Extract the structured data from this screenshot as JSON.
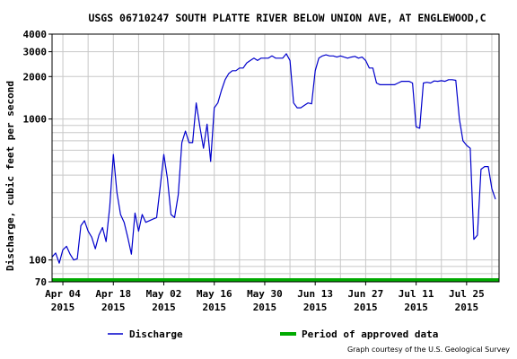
{
  "chart_data": {
    "type": "line",
    "title": "USGS 06710247 SOUTH PLATTE RIVER BELOW UNION AVE, AT ENGLEWOOD,C",
    "ylabel": "Discharge, cubic feet per second",
    "xlabel": "",
    "y_scale": "log",
    "ylim": [
      70,
      4000
    ],
    "xlim": [
      "2015-04-01",
      "2015-08-03"
    ],
    "y_ticks": [
      {
        "value": 70,
        "label": "70"
      },
      {
        "value": 100,
        "label": "100"
      },
      {
        "value": 1000,
        "label": "1000"
      },
      {
        "value": 2000,
        "label": "2000"
      },
      {
        "value": 3000,
        "label": "3000"
      },
      {
        "value": 4000,
        "label": "4000"
      }
    ],
    "x_ticks": [
      {
        "date": "2015-04-04",
        "label": "Apr 04",
        "year": "2015"
      },
      {
        "date": "2015-04-18",
        "label": "Apr 18",
        "year": "2015"
      },
      {
        "date": "2015-05-02",
        "label": "May 02",
        "year": "2015"
      },
      {
        "date": "2015-05-16",
        "label": "May 16",
        "year": "2015"
      },
      {
        "date": "2015-05-30",
        "label": "May 30",
        "year": "2015"
      },
      {
        "date": "2015-06-13",
        "label": "Jun 13",
        "year": "2015"
      },
      {
        "date": "2015-06-27",
        "label": "Jun 27",
        "year": "2015"
      },
      {
        "date": "2015-07-11",
        "label": "Jul 11",
        "year": "2015"
      },
      {
        "date": "2015-07-25",
        "label": "Jul 25",
        "year": "2015"
      }
    ],
    "grid": true,
    "legend_position": "bottom",
    "series": [
      {
        "name": "Discharge",
        "color": "#0000cc",
        "x": [
          "2015-04-01",
          "2015-04-02",
          "2015-04-03",
          "2015-04-04",
          "2015-04-05",
          "2015-04-06",
          "2015-04-07",
          "2015-04-08",
          "2015-04-09",
          "2015-04-10",
          "2015-04-11",
          "2015-04-12",
          "2015-04-13",
          "2015-04-14",
          "2015-04-15",
          "2015-04-16",
          "2015-04-17",
          "2015-04-18",
          "2015-04-19",
          "2015-04-20",
          "2015-04-21",
          "2015-04-22",
          "2015-04-23",
          "2015-04-24",
          "2015-04-25",
          "2015-04-26",
          "2015-04-27",
          "2015-04-28",
          "2015-04-29",
          "2015-04-30",
          "2015-05-01",
          "2015-05-02",
          "2015-05-03",
          "2015-05-04",
          "2015-05-05",
          "2015-05-06",
          "2015-05-07",
          "2015-05-08",
          "2015-05-09",
          "2015-05-10",
          "2015-05-11",
          "2015-05-12",
          "2015-05-13",
          "2015-05-14",
          "2015-05-15",
          "2015-05-16",
          "2015-05-17",
          "2015-05-18",
          "2015-05-19",
          "2015-05-20",
          "2015-05-21",
          "2015-05-22",
          "2015-05-23",
          "2015-05-24",
          "2015-05-25",
          "2015-05-26",
          "2015-05-27",
          "2015-05-28",
          "2015-05-29",
          "2015-05-30",
          "2015-05-31",
          "2015-06-01",
          "2015-06-02",
          "2015-06-03",
          "2015-06-04",
          "2015-06-05",
          "2015-06-06",
          "2015-06-07",
          "2015-06-08",
          "2015-06-09",
          "2015-06-10",
          "2015-06-11",
          "2015-06-12",
          "2015-06-13",
          "2015-06-14",
          "2015-06-15",
          "2015-06-16",
          "2015-06-17",
          "2015-06-18",
          "2015-06-19",
          "2015-06-20",
          "2015-06-21",
          "2015-06-22",
          "2015-06-23",
          "2015-06-24",
          "2015-06-25",
          "2015-06-26",
          "2015-06-27",
          "2015-06-28",
          "2015-06-29",
          "2015-06-30",
          "2015-07-01",
          "2015-07-02",
          "2015-07-03",
          "2015-07-04",
          "2015-07-05",
          "2015-07-06",
          "2015-07-07",
          "2015-07-08",
          "2015-07-09",
          "2015-07-10",
          "2015-07-11",
          "2015-07-12",
          "2015-07-13",
          "2015-07-14",
          "2015-07-15",
          "2015-07-16",
          "2015-07-17",
          "2015-07-18",
          "2015-07-19",
          "2015-07-20",
          "2015-07-21",
          "2015-07-22",
          "2015-07-23",
          "2015-07-24",
          "2015-07-25",
          "2015-07-26",
          "2015-07-27",
          "2015-07-28",
          "2015-07-29",
          "2015-07-30",
          "2015-07-31",
          "2015-08-01",
          "2015-08-02"
        ],
        "y": [
          105,
          112,
          95,
          118,
          125,
          110,
          100,
          102,
          175,
          190,
          160,
          145,
          120,
          150,
          170,
          135,
          240,
          560,
          300,
          210,
          185,
          145,
          110,
          215,
          160,
          210,
          185,
          190,
          195,
          200,
          330,
          560,
          380,
          210,
          200,
          290,
          680,
          820,
          680,
          680,
          1300,
          880,
          620,
          920,
          500,
          1200,
          1300,
          1600,
          1900,
          2100,
          2200,
          2200,
          2300,
          2300,
          2500,
          2600,
          2700,
          2600,
          2700,
          2700,
          2700,
          2800,
          2700,
          2700,
          2700,
          2900,
          2600,
          1300,
          1200,
          1200,
          1250,
          1300,
          1280,
          2200,
          2700,
          2800,
          2850,
          2800,
          2800,
          2750,
          2800,
          2750,
          2700,
          2750,
          2780,
          2700,
          2750,
          2600,
          2300,
          2300,
          1800,
          1750,
          1750,
          1750,
          1750,
          1750,
          1800,
          1850,
          1850,
          1850,
          1800,
          880,
          860,
          1800,
          1820,
          1800,
          1860,
          1850,
          1870,
          1850,
          1900,
          1900,
          1880,
          1000,
          700,
          650,
          620,
          140,
          150,
          440,
          460,
          460,
          320,
          270
        ]
      }
    ],
    "legend": {
      "discharge_label": "Discharge",
      "approved_label": "Period of approved data",
      "approved_color": "#00aa00"
    },
    "credit": "Graph courtesy of the U.S. Geological Survey"
  }
}
